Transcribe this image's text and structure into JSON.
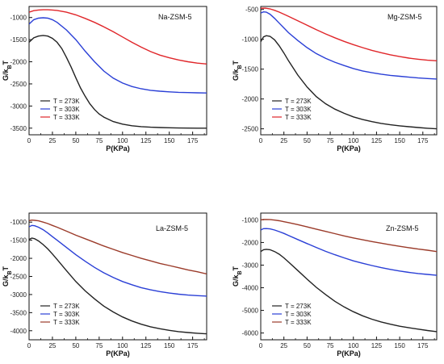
{
  "chart_data": [
    {
      "type": "line",
      "title": "Na-ZSM-5",
      "xlabel": "P(KPa)",
      "ylabel": "G/kBT",
      "xlim": [
        0,
        190
      ],
      "ylim": [
        -3650,
        -750
      ],
      "xticks": [
        0,
        25,
        50,
        75,
        100,
        125,
        150,
        175
      ],
      "yticks": [
        -1000,
        -1500,
        -2000,
        -2500,
        -3000,
        -3500
      ],
      "legend_position": "bottom-left",
      "series": [
        {
          "name": "T = 273K",
          "color": "#222222",
          "x": [
            0,
            5,
            10,
            15,
            20,
            25,
            30,
            35,
            40,
            45,
            50,
            55,
            60,
            65,
            70,
            75,
            80,
            90,
            100,
            110,
            120,
            130,
            140,
            150,
            160,
            170,
            180,
            190
          ],
          "y": [
            -1560,
            -1460,
            -1420,
            -1405,
            -1420,
            -1470,
            -1560,
            -1700,
            -1900,
            -2120,
            -2360,
            -2590,
            -2780,
            -2950,
            -3080,
            -3180,
            -3250,
            -3350,
            -3410,
            -3445,
            -3465,
            -3478,
            -3486,
            -3492,
            -3496,
            -3499,
            -3500,
            -3500
          ]
        },
        {
          "name": "T = 303K",
          "color": "#2a3fd6",
          "x": [
            0,
            5,
            10,
            15,
            20,
            25,
            30,
            40,
            50,
            60,
            70,
            80,
            90,
            100,
            110,
            120,
            130,
            140,
            150,
            160,
            170,
            180,
            190
          ],
          "y": [
            -1150,
            -1050,
            -1015,
            -1005,
            -1015,
            -1050,
            -1110,
            -1280,
            -1500,
            -1760,
            -2000,
            -2210,
            -2370,
            -2480,
            -2560,
            -2610,
            -2645,
            -2665,
            -2680,
            -2690,
            -2697,
            -2702,
            -2705
          ]
        },
        {
          "name": "T = 333K",
          "color": "#e0262a",
          "x": [
            0,
            5,
            10,
            15,
            20,
            25,
            30,
            40,
            50,
            60,
            70,
            80,
            90,
            100,
            110,
            120,
            130,
            140,
            150,
            160,
            170,
            180,
            190
          ],
          "y": [
            -880,
            -845,
            -830,
            -825,
            -825,
            -830,
            -840,
            -880,
            -940,
            -1020,
            -1110,
            -1210,
            -1320,
            -1440,
            -1560,
            -1670,
            -1770,
            -1850,
            -1910,
            -1960,
            -2000,
            -2030,
            -2050
          ]
        }
      ]
    },
    {
      "type": "line",
      "title": "Mg-ZSM-5",
      "xlabel": "P(KPa)",
      "ylabel": "G/kBT",
      "xlim": [
        0,
        190
      ],
      "ylim": [
        -2600,
        -450
      ],
      "xticks": [
        0,
        25,
        50,
        75,
        100,
        125,
        150,
        175
      ],
      "yticks": [
        -500,
        -1000,
        -1500,
        -2000,
        -2500
      ],
      "legend_position": "bottom-left",
      "series": [
        {
          "name": "T = 273K",
          "color": "#222222",
          "x": [
            0,
            3,
            6,
            10,
            15,
            20,
            25,
            30,
            40,
            50,
            60,
            70,
            80,
            90,
            100,
            110,
            120,
            130,
            140,
            150,
            160,
            170,
            180,
            190
          ],
          "y": [
            -1040,
            -960,
            -940,
            -950,
            -1010,
            -1110,
            -1230,
            -1360,
            -1600,
            -1800,
            -1960,
            -2080,
            -2170,
            -2240,
            -2300,
            -2345,
            -2380,
            -2410,
            -2432,
            -2450,
            -2465,
            -2478,
            -2490,
            -2500
          ]
        },
        {
          "name": "T = 303K",
          "color": "#2a3fd6",
          "x": [
            0,
            3,
            6,
            10,
            15,
            20,
            25,
            30,
            40,
            50,
            60,
            70,
            80,
            90,
            100,
            110,
            120,
            130,
            140,
            150,
            160,
            170,
            180,
            190
          ],
          "y": [
            -560,
            -540,
            -545,
            -580,
            -650,
            -730,
            -810,
            -890,
            -1020,
            -1140,
            -1240,
            -1320,
            -1385,
            -1440,
            -1490,
            -1530,
            -1560,
            -1585,
            -1605,
            -1620,
            -1635,
            -1648,
            -1658,
            -1665
          ]
        },
        {
          "name": "T = 333K",
          "color": "#e0262a",
          "x": [
            0,
            5,
            10,
            15,
            20,
            25,
            30,
            40,
            50,
            60,
            70,
            80,
            90,
            100,
            110,
            120,
            130,
            140,
            150,
            160,
            170,
            180,
            190
          ],
          "y": [
            -480,
            -478,
            -490,
            -515,
            -545,
            -580,
            -615,
            -690,
            -765,
            -840,
            -910,
            -975,
            -1035,
            -1090,
            -1140,
            -1185,
            -1225,
            -1260,
            -1290,
            -1315,
            -1335,
            -1350,
            -1360
          ]
        }
      ]
    },
    {
      "type": "line",
      "title": "La-ZSM-5",
      "xlabel": "P(KPa)",
      "ylabel": "G/kBT",
      "xlim": [
        0,
        190
      ],
      "ylim": [
        -4250,
        -750
      ],
      "xticks": [
        0,
        25,
        50,
        75,
        100,
        125,
        150,
        175
      ],
      "yticks": [
        -1000,
        -1500,
        -2000,
        -2500,
        -3000,
        -3500,
        -4000
      ],
      "legend_position": "bottom-left",
      "series": [
        {
          "name": "T = 273K",
          "color": "#222222",
          "x": [
            0,
            3,
            6,
            10,
            15,
            20,
            25,
            30,
            40,
            50,
            60,
            70,
            80,
            90,
            100,
            110,
            120,
            130,
            140,
            150,
            160,
            170,
            180,
            190
          ],
          "y": [
            -1480,
            -1440,
            -1460,
            -1520,
            -1620,
            -1740,
            -1880,
            -2030,
            -2340,
            -2640,
            -2900,
            -3120,
            -3320,
            -3480,
            -3620,
            -3730,
            -3820,
            -3890,
            -3945,
            -3990,
            -4025,
            -4050,
            -4070,
            -4085
          ]
        },
        {
          "name": "T = 303K",
          "color": "#2a3fd6",
          "x": [
            0,
            3,
            6,
            10,
            15,
            20,
            25,
            30,
            40,
            50,
            60,
            70,
            80,
            90,
            100,
            110,
            120,
            130,
            140,
            150,
            160,
            170,
            180,
            190
          ],
          "y": [
            -1130,
            -1090,
            -1100,
            -1140,
            -1210,
            -1300,
            -1400,
            -1500,
            -1700,
            -1900,
            -2080,
            -2250,
            -2400,
            -2530,
            -2640,
            -2730,
            -2810,
            -2870,
            -2920,
            -2960,
            -2990,
            -3015,
            -3030,
            -3045
          ]
        },
        {
          "name": "T = 333K",
          "color": "#9b3b2a",
          "x": [
            0,
            3,
            6,
            10,
            15,
            20,
            25,
            30,
            40,
            50,
            60,
            70,
            80,
            90,
            100,
            110,
            120,
            130,
            140,
            150,
            160,
            170,
            180,
            190
          ],
          "y": [
            -960,
            -945,
            -950,
            -965,
            -1000,
            -1040,
            -1090,
            -1140,
            -1250,
            -1360,
            -1460,
            -1560,
            -1660,
            -1750,
            -1840,
            -1920,
            -2000,
            -2070,
            -2140,
            -2200,
            -2260,
            -2320,
            -2370,
            -2430
          ]
        }
      ]
    },
    {
      "type": "line",
      "title": "Zn-ZSM-5",
      "xlabel": "P(KPa)",
      "ylabel": "G/kBT",
      "xlim": [
        0,
        190
      ],
      "ylim": [
        -6300,
        -700
      ],
      "xticks": [
        0,
        25,
        50,
        75,
        100,
        125,
        150,
        175
      ],
      "yticks": [
        -1000,
        -2000,
        -3000,
        -4000,
        -5000,
        -6000
      ],
      "legend_position": "bottom-left",
      "series": [
        {
          "name": "T = 273K",
          "color": "#222222",
          "x": [
            0,
            3,
            6,
            10,
            15,
            20,
            25,
            30,
            40,
            50,
            60,
            70,
            80,
            90,
            100,
            110,
            120,
            130,
            140,
            150,
            160,
            170,
            180,
            190
          ],
          "y": [
            -2400,
            -2320,
            -2300,
            -2320,
            -2400,
            -2520,
            -2680,
            -2860,
            -3240,
            -3620,
            -3980,
            -4300,
            -4600,
            -4850,
            -5060,
            -5240,
            -5390,
            -5510,
            -5610,
            -5700,
            -5770,
            -5830,
            -5890,
            -5940
          ]
        },
        {
          "name": "T = 303K",
          "color": "#2a3fd6",
          "x": [
            0,
            3,
            6,
            10,
            15,
            20,
            25,
            30,
            40,
            50,
            60,
            70,
            80,
            90,
            100,
            110,
            120,
            130,
            140,
            150,
            160,
            170,
            180,
            190
          ],
          "y": [
            -1450,
            -1390,
            -1385,
            -1400,
            -1450,
            -1520,
            -1600,
            -1690,
            -1870,
            -2050,
            -2220,
            -2390,
            -2540,
            -2680,
            -2810,
            -2920,
            -3020,
            -3110,
            -3190,
            -3260,
            -3320,
            -3370,
            -3410,
            -3450
          ]
        },
        {
          "name": "T = 333K",
          "color": "#9b3b2a",
          "x": [
            0,
            3,
            6,
            10,
            15,
            20,
            25,
            30,
            40,
            50,
            60,
            70,
            80,
            90,
            100,
            110,
            120,
            130,
            140,
            150,
            160,
            170,
            180,
            190
          ],
          "y": [
            -1000,
            -985,
            -980,
            -990,
            -1010,
            -1040,
            -1080,
            -1120,
            -1210,
            -1310,
            -1410,
            -1510,
            -1610,
            -1710,
            -1800,
            -1880,
            -1960,
            -2030,
            -2100,
            -2170,
            -2230,
            -2290,
            -2340,
            -2400
          ]
        }
      ]
    }
  ]
}
